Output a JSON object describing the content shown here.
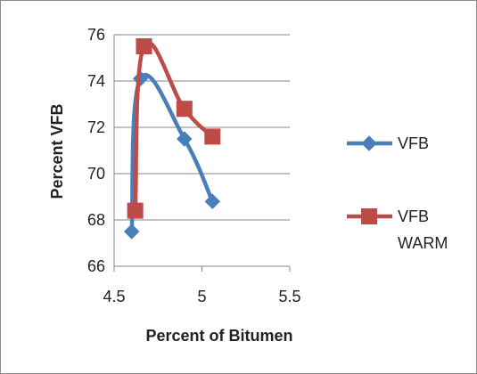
{
  "chart_data": {
    "type": "scatter",
    "xlabel": "Percent of Bitumen",
    "ylabel": "Percent VFB",
    "xlim": [
      4.5,
      5.5
    ],
    "ylim": [
      66,
      76
    ],
    "xticks": [
      "4.5",
      "5",
      "5.5"
    ],
    "yticks": [
      "66",
      "68",
      "70",
      "72",
      "74",
      "76"
    ],
    "grid": "horizontal",
    "legend_position": "right",
    "series": [
      {
        "name": "VFB",
        "color": "#4a7ebb",
        "marker": "diamond",
        "x": [
          4.6,
          4.65,
          4.9,
          5.06
        ],
        "y": [
          67.5,
          74.1,
          71.5,
          68.8
        ]
      },
      {
        "name": "VFB WARM",
        "color": "#be4b48",
        "marker": "square",
        "x": [
          4.62,
          4.67,
          4.9,
          5.06
        ],
        "y": [
          68.4,
          75.5,
          72.8,
          71.6
        ]
      }
    ]
  }
}
